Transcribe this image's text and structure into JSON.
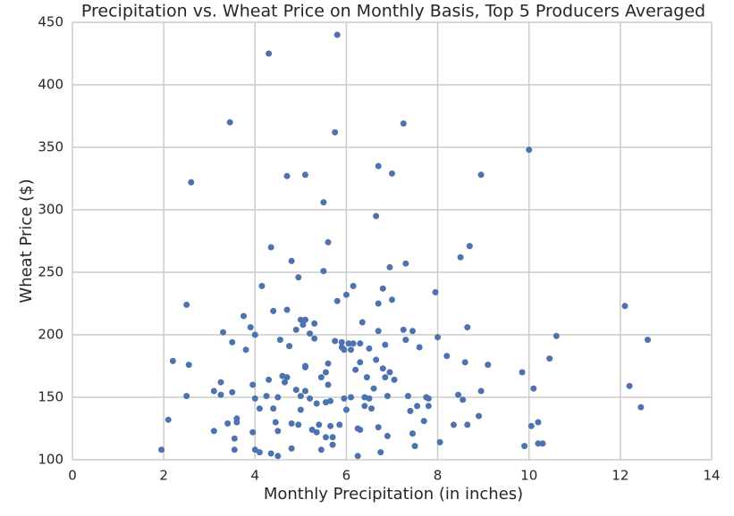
{
  "chart_data": {
    "type": "scatter",
    "title": "Precipitation vs. Wheat Price on Monthly Basis, Top 5 Producers Averaged",
    "x_label": "Monthly Precipitation (in inches)",
    "y_label": "Wheat Price ($)",
    "color": "#4c72b0",
    "grid": true,
    "xlim": [
      0,
      14
    ],
    "xticks": [
      0,
      2,
      4,
      6,
      8,
      10,
      12,
      14
    ],
    "ylim": [
      100,
      450
    ],
    "yticks": [
      100,
      150,
      200,
      250,
      300,
      350,
      400,
      450
    ],
    "x": [
      1.95,
      2.1,
      2.2,
      2.5,
      2.55,
      2.5,
      2.6,
      3.1,
      3.1,
      3.25,
      3.25,
      3.3,
      3.45,
      3.4,
      3.5,
      3.5,
      3.55,
      3.55,
      3.6,
      3.6,
      3.75,
      3.8,
      3.9,
      3.95,
      3.95,
      4.0,
      4.0,
      4.0,
      4.1,
      4.1,
      4.15,
      4.25,
      4.3,
      4.3,
      4.35,
      4.4,
      4.35,
      4.4,
      4.45,
      4.5,
      4.5,
      4.5,
      4.55,
      4.6,
      4.65,
      4.7,
      4.7,
      4.7,
      4.75,
      4.8,
      4.8,
      4.8,
      4.9,
      4.9,
      4.95,
      4.95,
      5.0,
      5.0,
      5.0,
      5.05,
      5.1,
      5.1,
      5.1,
      5.1,
      5.1,
      5.2,
      5.2,
      5.25,
      5.3,
      5.3,
      5.35,
      5.35,
      5.4,
      5.45,
      5.45,
      5.5,
      5.5,
      5.55,
      5.55,
      5.55,
      5.6,
      5.6,
      5.6,
      5.65,
      5.65,
      5.7,
      5.7,
      5.75,
      5.75,
      5.8,
      5.8,
      5.85,
      5.9,
      5.9,
      5.95,
      5.95,
      6.0,
      6.0,
      6.05,
      6.1,
      6.1,
      6.15,
      6.15,
      6.2,
      6.25,
      6.25,
      6.3,
      6.3,
      6.3,
      6.35,
      6.4,
      6.4,
      6.45,
      6.5,
      6.5,
      6.55,
      6.6,
      6.65,
      6.65,
      6.7,
      6.7,
      6.7,
      6.7,
      6.75,
      6.8,
      6.8,
      6.85,
      6.85,
      6.9,
      6.9,
      6.95,
      6.95,
      7.0,
      7.0,
      7.05,
      7.25,
      7.25,
      7.3,
      7.3,
      7.35,
      7.4,
      7.45,
      7.45,
      7.5,
      7.55,
      7.6,
      7.7,
      7.75,
      7.8,
      7.8,
      7.95,
      8.0,
      8.05,
      8.2,
      8.35,
      8.45,
      8.5,
      8.55,
      8.6,
      8.65,
      8.65,
      8.7,
      8.9,
      8.95,
      8.95,
      9.1,
      9.85,
      9.9,
      10.0,
      10.05,
      10.1,
      10.2,
      10.2,
      10.3,
      10.45,
      10.6,
      12.1,
      12.2,
      12.45,
      12.6
    ],
    "values": [
      108,
      132,
      179,
      151,
      176,
      224,
      322,
      123,
      155,
      152,
      162,
      202,
      370,
      129,
      194,
      154,
      108,
      117,
      130,
      133,
      215,
      188,
      206,
      160,
      122,
      108,
      200,
      149,
      106,
      141,
      239,
      151,
      425,
      164,
      270,
      219,
      105,
      141,
      130,
      103,
      123,
      150,
      196,
      167,
      162,
      166,
      220,
      327,
      191,
      259,
      129,
      109,
      204,
      156,
      246,
      128,
      212,
      151,
      140,
      208,
      328,
      212,
      175,
      174,
      155,
      201,
      149,
      124,
      209,
      197,
      145,
      122,
      128,
      108,
      166,
      306,
      251,
      146,
      118,
      170,
      274,
      177,
      160,
      127,
      147,
      118,
      112,
      362,
      195,
      440,
      227,
      128,
      194,
      190,
      188,
      149,
      232,
      140,
      193,
      188,
      150,
      239,
      193,
      172,
      103,
      125,
      193,
      178,
      124,
      210,
      150,
      143,
      166,
      189,
      149,
      141,
      157,
      180,
      295,
      335,
      225,
      203,
      126,
      106,
      237,
      173,
      192,
      166,
      151,
      119,
      170,
      254,
      329,
      228,
      164,
      369,
      204,
      196,
      257,
      151,
      139,
      121,
      203,
      111,
      143,
      190,
      131,
      150,
      149,
      143,
      234,
      198,
      114,
      183,
      128,
      152,
      262,
      148,
      178,
      206,
      128,
      271,
      135,
      328,
      155,
      176,
      170,
      111,
      348,
      127,
      157,
      113,
      130,
      113,
      181,
      199,
      223,
      159,
      142,
      196
    ]
  }
}
